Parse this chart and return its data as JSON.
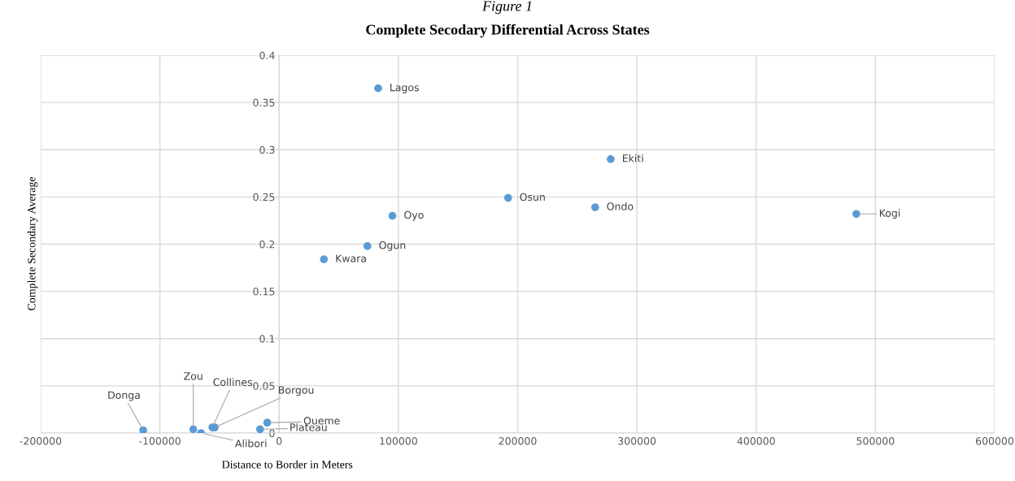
{
  "chart_data": {
    "type": "scatter",
    "title": "Complete Secodary Differential Across States",
    "xlabel": "Distance to Border in Meters",
    "ylabel": "Complete Secondary Average",
    "x": [
      83000,
      278000,
      192000,
      265000,
      484000,
      95000,
      74000,
      37500,
      -114000,
      -72000,
      -65500,
      -56000,
      -54000,
      -16000,
      -10000
    ],
    "series": [
      {
        "color": "#5b9bd5",
        "values": [
          0.365,
          0.29,
          0.249,
          0.239,
          0.232,
          0.23,
          0.198,
          0.184,
          0.003,
          0.004,
          0.0,
          0.006,
          0.006,
          0.004,
          0.011
        ]
      }
    ],
    "xlim": [
      -200000,
      600000
    ],
    "xticks": [
      -200000,
      -100000,
      0,
      100000,
      200000,
      300000,
      400000,
      500000,
      600000
    ],
    "ylim": [
      0,
      0.4
    ],
    "yticks": [
      0,
      0.05,
      0.1,
      0.15,
      0.2,
      0.25,
      0.3,
      0.35,
      0.4
    ],
    "grid": true,
    "marker": "circle",
    "legend": false,
    "annotations": [
      "Figure 1",
      {
        "text": "Lagos",
        "x": 83000,
        "y": 0.365
      },
      {
        "text": "Ekiti",
        "x": 278000,
        "y": 0.29
      },
      {
        "text": "Osun",
        "x": 192000,
        "y": 0.249
      },
      {
        "text": "Ondo",
        "x": 265000,
        "y": 0.239
      },
      {
        "text": "Kogi",
        "x": 484000,
        "y": 0.232
      },
      {
        "text": "Oyo",
        "x": 95000,
        "y": 0.23
      },
      {
        "text": "Ogun",
        "x": 74000,
        "y": 0.198
      },
      {
        "text": "Kwara",
        "x": 37500,
        "y": 0.184
      },
      {
        "text": "Donga",
        "x": -114000,
        "y": 0.003
      },
      {
        "text": "Zou",
        "x": -72000,
        "y": 0.004
      },
      {
        "text": "Alibori",
        "x": -65500,
        "y": 0.0
      },
      {
        "text": "Collines",
        "x": -56000,
        "y": 0.006
      },
      {
        "text": "Borgou",
        "x": -54000,
        "y": 0.006
      },
      {
        "text": "Plateau",
        "x": -16000,
        "y": 0.004
      },
      {
        "text": "Oueme",
        "x": -10000,
        "y": 0.011
      }
    ]
  }
}
